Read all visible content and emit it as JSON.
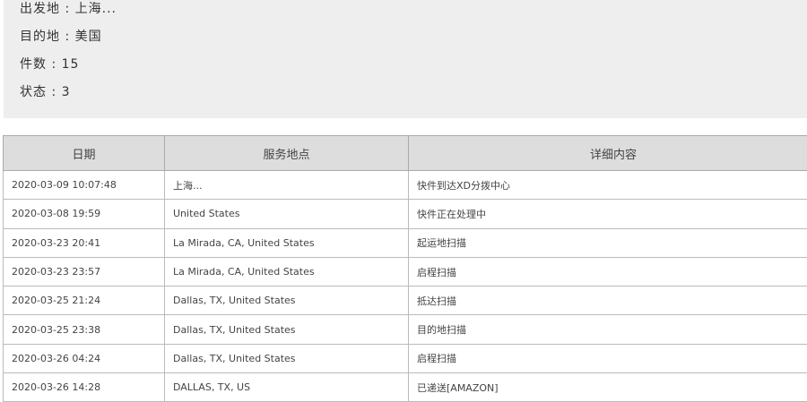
{
  "info": [
    {
      "label": "出发地",
      "value": "上海..."
    },
    {
      "label": "目的地",
      "value": "美国"
    },
    {
      "label": "件数",
      "value": "15"
    },
    {
      "label": "状态",
      "value": "3"
    }
  ],
  "table": {
    "headers": [
      "日期",
      "服务地点",
      "详细内容"
    ],
    "rows": [
      [
        "2020-03-09 10:07:48",
        "上海...",
        "快件到达XD分拨中心"
      ],
      [
        "2020-03-08 19:59",
        "United States",
        "快件正在处理中"
      ],
      [
        "2020-03-23 20:41",
        "La Mirada, CA, United States",
        "起运地扫描"
      ],
      [
        "2020-03-23 23:57",
        "La Mirada, CA, United States",
        "启程扫描"
      ],
      [
        "2020-03-25 21:24",
        "Dallas, TX, United States",
        "抵达扫描"
      ],
      [
        "2020-03-25 23:38",
        "Dallas, TX, United States",
        "目的地扫描"
      ],
      [
        "2020-03-26 04:24",
        "Dallas, TX, United States",
        "启程扫描"
      ],
      [
        "2020-03-26 14:28",
        "DALLAS, TX, US",
        "已递送[AMAZON]"
      ]
    ]
  }
}
